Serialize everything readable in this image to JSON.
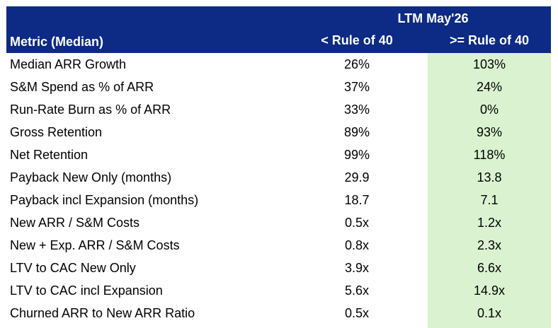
{
  "header": {
    "period": "LTM May'26",
    "metric_label": "Metric (Median)",
    "col_a": "< Rule of 40",
    "col_b": ">= Rule of 40"
  },
  "colors": {
    "header_bg": "#0d2a84",
    "highlight_bg": "#daf2d0"
  },
  "rows": [
    {
      "metric": "Median ARR Growth",
      "a": "26%",
      "b": "103%"
    },
    {
      "metric": "S&M Spend as % of ARR",
      "a": "37%",
      "b": "24%"
    },
    {
      "metric": "Run-Rate Burn as % of ARR",
      "a": "33%",
      "b": "0%"
    },
    {
      "metric": "Gross Retention",
      "a": "89%",
      "b": "93%"
    },
    {
      "metric": "Net Retention",
      "a": "99%",
      "b": "118%"
    },
    {
      "metric": "Payback New Only (months)",
      "a": "29.9",
      "b": "13.8"
    },
    {
      "metric": "Payback incl Expansion (months)",
      "a": "18.7",
      "b": "7.1"
    },
    {
      "metric": "New ARR / S&M Costs",
      "a": "0.5x",
      "b": "1.2x"
    },
    {
      "metric": "New + Exp. ARR / S&M Costs",
      "a": "0.8x",
      "b": "2.3x"
    },
    {
      "metric": "LTV to CAC New Only",
      "a": "3.9x",
      "b": "6.6x"
    },
    {
      "metric": "LTV to CAC incl Expansion",
      "a": "5.6x",
      "b": "14.9x"
    },
    {
      "metric": "Churned ARR to New ARR Ratio",
      "a": "0.5x",
      "b": "0.1x"
    }
  ]
}
